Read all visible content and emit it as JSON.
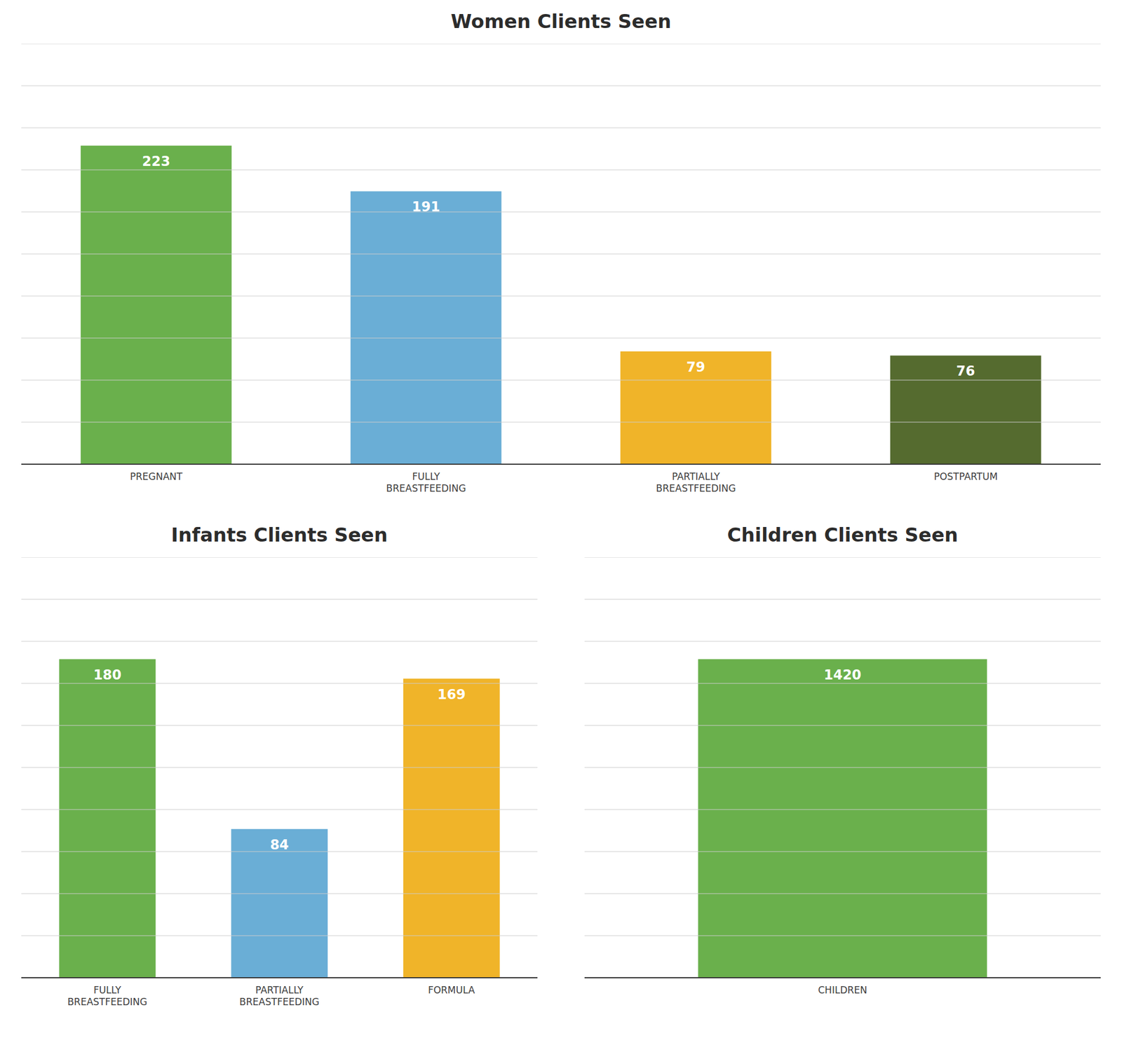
{
  "chart_data": [
    {
      "type": "bar",
      "title": "Women Clients Seen",
      "categories": [
        "PREGNANT",
        "FULLY\nBREASTFEEDING",
        "PARTIALLY\nBREASTFEEDING",
        "POSTPARTUM"
      ],
      "values": [
        223,
        191,
        79,
        76
      ],
      "colors": [
        "#6ab04c",
        "#6aaed6",
        "#f0b429",
        "#556b2f"
      ],
      "ylim": [
        0,
        294.36
      ],
      "yticks": [
        0,
        29.436,
        58.872,
        88.308,
        117.744,
        147.18,
        176.616,
        206.052,
        235.488,
        264.924,
        294.36
      ],
      "grid": true,
      "data_labels": true,
      "tick_labels": "x"
    },
    {
      "type": "bar",
      "title": "Infants Clients Seen",
      "categories": [
        "FULLY\nBREASTFEEDING",
        "PARTIALLY\nBREASTFEEDING",
        "FORMULA"
      ],
      "values": [
        180,
        84,
        169
      ],
      "colors": [
        "#6ab04c",
        "#6aaed6",
        "#f0b429"
      ],
      "ylim": [
        0,
        237.6
      ],
      "yticks": [
        0,
        23.76,
        47.52,
        71.28,
        95.04,
        118.8,
        142.56,
        166.32,
        190.08,
        213.84,
        237.6
      ],
      "grid": true,
      "data_labels": true,
      "tick_labels": "x"
    },
    {
      "type": "bar",
      "title": "Children Clients Seen",
      "categories": [
        "CHILDREN"
      ],
      "values": [
        1420
      ],
      "colors": [
        "#6ab04c"
      ],
      "ylim": [
        0,
        1874.4
      ],
      "yticks": [
        0,
        187.44,
        374.88,
        562.32,
        749.76,
        937.2,
        1124.64,
        1312.08,
        1499.52,
        1686.96,
        1874.4
      ],
      "grid": true,
      "data_labels": true,
      "tick_labels": "x"
    }
  ]
}
